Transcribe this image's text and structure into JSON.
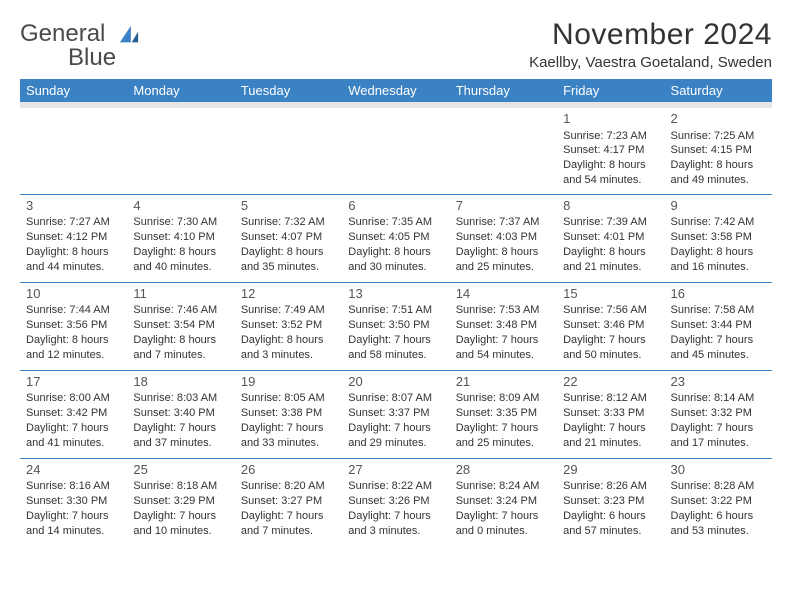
{
  "logo": {
    "text1": "General",
    "text2": "Blue"
  },
  "title": "November 2024",
  "location": "Kaellby, Vaestra Goetaland, Sweden",
  "header_bg": "#3b82c4",
  "header_fg": "#ffffff",
  "rule_color": "#3b82c4",
  "spacer_bg": "#e5e5e5",
  "day_headers": [
    "Sunday",
    "Monday",
    "Tuesday",
    "Wednesday",
    "Thursday",
    "Friday",
    "Saturday"
  ],
  "weeks": [
    [
      null,
      null,
      null,
      null,
      null,
      {
        "n": "1",
        "sr": "Sunrise: 7:23 AM",
        "ss": "Sunset: 4:17 PM",
        "dl1": "Daylight: 8 hours",
        "dl2": "and 54 minutes."
      },
      {
        "n": "2",
        "sr": "Sunrise: 7:25 AM",
        "ss": "Sunset: 4:15 PM",
        "dl1": "Daylight: 8 hours",
        "dl2": "and 49 minutes."
      }
    ],
    [
      {
        "n": "3",
        "sr": "Sunrise: 7:27 AM",
        "ss": "Sunset: 4:12 PM",
        "dl1": "Daylight: 8 hours",
        "dl2": "and 44 minutes."
      },
      {
        "n": "4",
        "sr": "Sunrise: 7:30 AM",
        "ss": "Sunset: 4:10 PM",
        "dl1": "Daylight: 8 hours",
        "dl2": "and 40 minutes."
      },
      {
        "n": "5",
        "sr": "Sunrise: 7:32 AM",
        "ss": "Sunset: 4:07 PM",
        "dl1": "Daylight: 8 hours",
        "dl2": "and 35 minutes."
      },
      {
        "n": "6",
        "sr": "Sunrise: 7:35 AM",
        "ss": "Sunset: 4:05 PM",
        "dl1": "Daylight: 8 hours",
        "dl2": "and 30 minutes."
      },
      {
        "n": "7",
        "sr": "Sunrise: 7:37 AM",
        "ss": "Sunset: 4:03 PM",
        "dl1": "Daylight: 8 hours",
        "dl2": "and 25 minutes."
      },
      {
        "n": "8",
        "sr": "Sunrise: 7:39 AM",
        "ss": "Sunset: 4:01 PM",
        "dl1": "Daylight: 8 hours",
        "dl2": "and 21 minutes."
      },
      {
        "n": "9",
        "sr": "Sunrise: 7:42 AM",
        "ss": "Sunset: 3:58 PM",
        "dl1": "Daylight: 8 hours",
        "dl2": "and 16 minutes."
      }
    ],
    [
      {
        "n": "10",
        "sr": "Sunrise: 7:44 AM",
        "ss": "Sunset: 3:56 PM",
        "dl1": "Daylight: 8 hours",
        "dl2": "and 12 minutes."
      },
      {
        "n": "11",
        "sr": "Sunrise: 7:46 AM",
        "ss": "Sunset: 3:54 PM",
        "dl1": "Daylight: 8 hours",
        "dl2": "and 7 minutes."
      },
      {
        "n": "12",
        "sr": "Sunrise: 7:49 AM",
        "ss": "Sunset: 3:52 PM",
        "dl1": "Daylight: 8 hours",
        "dl2": "and 3 minutes."
      },
      {
        "n": "13",
        "sr": "Sunrise: 7:51 AM",
        "ss": "Sunset: 3:50 PM",
        "dl1": "Daylight: 7 hours",
        "dl2": "and 58 minutes."
      },
      {
        "n": "14",
        "sr": "Sunrise: 7:53 AM",
        "ss": "Sunset: 3:48 PM",
        "dl1": "Daylight: 7 hours",
        "dl2": "and 54 minutes."
      },
      {
        "n": "15",
        "sr": "Sunrise: 7:56 AM",
        "ss": "Sunset: 3:46 PM",
        "dl1": "Daylight: 7 hours",
        "dl2": "and 50 minutes."
      },
      {
        "n": "16",
        "sr": "Sunrise: 7:58 AM",
        "ss": "Sunset: 3:44 PM",
        "dl1": "Daylight: 7 hours",
        "dl2": "and 45 minutes."
      }
    ],
    [
      {
        "n": "17",
        "sr": "Sunrise: 8:00 AM",
        "ss": "Sunset: 3:42 PM",
        "dl1": "Daylight: 7 hours",
        "dl2": "and 41 minutes."
      },
      {
        "n": "18",
        "sr": "Sunrise: 8:03 AM",
        "ss": "Sunset: 3:40 PM",
        "dl1": "Daylight: 7 hours",
        "dl2": "and 37 minutes."
      },
      {
        "n": "19",
        "sr": "Sunrise: 8:05 AM",
        "ss": "Sunset: 3:38 PM",
        "dl1": "Daylight: 7 hours",
        "dl2": "and 33 minutes."
      },
      {
        "n": "20",
        "sr": "Sunrise: 8:07 AM",
        "ss": "Sunset: 3:37 PM",
        "dl1": "Daylight: 7 hours",
        "dl2": "and 29 minutes."
      },
      {
        "n": "21",
        "sr": "Sunrise: 8:09 AM",
        "ss": "Sunset: 3:35 PM",
        "dl1": "Daylight: 7 hours",
        "dl2": "and 25 minutes."
      },
      {
        "n": "22",
        "sr": "Sunrise: 8:12 AM",
        "ss": "Sunset: 3:33 PM",
        "dl1": "Daylight: 7 hours",
        "dl2": "and 21 minutes."
      },
      {
        "n": "23",
        "sr": "Sunrise: 8:14 AM",
        "ss": "Sunset: 3:32 PM",
        "dl1": "Daylight: 7 hours",
        "dl2": "and 17 minutes."
      }
    ],
    [
      {
        "n": "24",
        "sr": "Sunrise: 8:16 AM",
        "ss": "Sunset: 3:30 PM",
        "dl1": "Daylight: 7 hours",
        "dl2": "and 14 minutes."
      },
      {
        "n": "25",
        "sr": "Sunrise: 8:18 AM",
        "ss": "Sunset: 3:29 PM",
        "dl1": "Daylight: 7 hours",
        "dl2": "and 10 minutes."
      },
      {
        "n": "26",
        "sr": "Sunrise: 8:20 AM",
        "ss": "Sunset: 3:27 PM",
        "dl1": "Daylight: 7 hours",
        "dl2": "and 7 minutes."
      },
      {
        "n": "27",
        "sr": "Sunrise: 8:22 AM",
        "ss": "Sunset: 3:26 PM",
        "dl1": "Daylight: 7 hours",
        "dl2": "and 3 minutes."
      },
      {
        "n": "28",
        "sr": "Sunrise: 8:24 AM",
        "ss": "Sunset: 3:24 PM",
        "dl1": "Daylight: 7 hours",
        "dl2": "and 0 minutes."
      },
      {
        "n": "29",
        "sr": "Sunrise: 8:26 AM",
        "ss": "Sunset: 3:23 PM",
        "dl1": "Daylight: 6 hours",
        "dl2": "and 57 minutes."
      },
      {
        "n": "30",
        "sr": "Sunrise: 8:28 AM",
        "ss": "Sunset: 3:22 PM",
        "dl1": "Daylight: 6 hours",
        "dl2": "and 53 minutes."
      }
    ]
  ]
}
